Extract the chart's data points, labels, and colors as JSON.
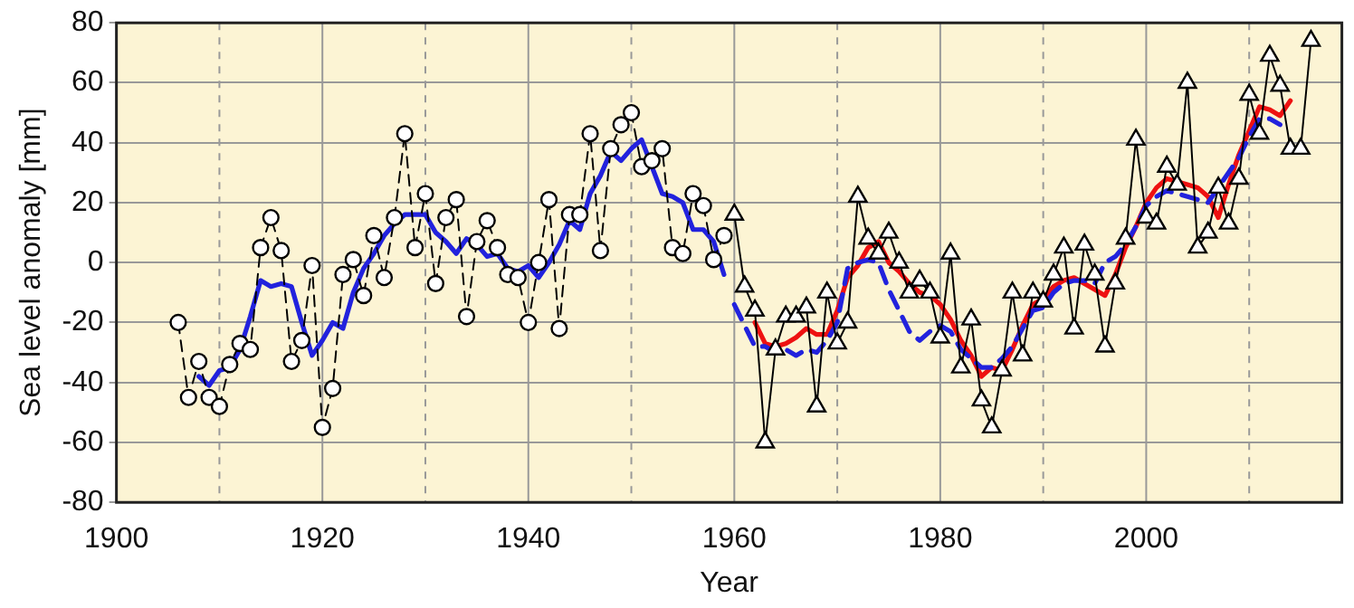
{
  "chart_data": {
    "type": "line",
    "xlabel": "Year",
    "ylabel": "Sea level anomaly [mm]",
    "xlim": [
      1900,
      2019
    ],
    "ylim": [
      -80,
      80
    ],
    "xticks": [
      1900,
      {
        "value": 1910,
        "label": null
      },
      1920,
      {
        "value": 1930,
        "label": null
      },
      1940,
      {
        "value": 1950,
        "label": null
      },
      1960,
      {
        "value": 1970,
        "label": null
      },
      1980,
      {
        "value": 1990,
        "label": null
      },
      2000,
      {
        "value": 2010,
        "label": null
      }
    ],
    "yticks": [
      -80,
      -60,
      -40,
      -20,
      0,
      20,
      40,
      60,
      80
    ],
    "grid": true,
    "legend": false,
    "series": [
      {
        "color": "#000000",
        "marker": "circle",
        "line_style": "dashed",
        "x": [
          1906,
          1907,
          1908,
          1909,
          1910,
          1911,
          1912,
          1913,
          1914,
          1915,
          1916,
          1917,
          1918,
          1919,
          1920,
          1921,
          1922,
          1923,
          1924,
          1925,
          1926,
          1927,
          1928,
          1929,
          1930,
          1931,
          1932,
          1933,
          1934,
          1935,
          1936,
          1937,
          1938,
          1939,
          1940,
          1941,
          1942,
          1943,
          1944,
          1945,
          1946,
          1947,
          1948,
          1949,
          1950,
          1951,
          1952,
          1953,
          1954,
          1955,
          1956,
          1957,
          1958,
          1959
        ],
        "values": [
          -20,
          -45,
          -33,
          -45,
          -48,
          -34,
          -27,
          -29,
          5,
          15,
          4,
          -33,
          -26,
          -1,
          -55,
          -42,
          -4,
          1,
          -11,
          9,
          -5,
          15,
          43,
          5,
          23,
          -7,
          15,
          21,
          -18,
          7,
          14,
          5,
          -4,
          -5,
          -20,
          0,
          21,
          -22,
          16,
          16,
          43,
          4,
          38,
          46,
          50,
          32,
          34,
          38,
          5,
          3,
          23,
          19,
          1,
          9
        ]
      },
      {
        "color": "#000000",
        "marker": "triangle",
        "line_style": "solid",
        "x": [
          1960,
          1961,
          1962,
          1963,
          1964,
          1965,
          1966,
          1967,
          1968,
          1969,
          1970,
          1971,
          1972,
          1973,
          1974,
          1975,
          1976,
          1977,
          1978,
          1979,
          1980,
          1981,
          1982,
          1983,
          1984,
          1985,
          1986,
          1987,
          1988,
          1989,
          1990,
          1991,
          1992,
          1993,
          1994,
          1995,
          1996,
          1997,
          1998,
          1999,
          2000,
          2001,
          2002,
          2003,
          2004,
          2005,
          2006,
          2007,
          2008,
          2009,
          2010,
          2011,
          2012,
          2013,
          2014,
          2015,
          2016
        ],
        "values": [
          16,
          -8,
          -16,
          -60,
          -29,
          -18,
          -18,
          -15,
          -48,
          -10,
          -27,
          -20,
          22,
          8,
          3,
          10,
          0,
          -10,
          -6,
          -10,
          -25,
          3,
          -35,
          -19,
          -46,
          -55,
          -36,
          -10,
          -31,
          -10,
          -13,
          -4,
          5,
          -22,
          6,
          -4,
          -28,
          -7,
          8,
          41,
          15,
          13,
          32,
          26,
          60,
          5,
          10,
          25,
          13,
          28,
          56,
          43,
          69,
          59,
          38,
          38,
          74
        ]
      },
      {
        "color": "#2222dd",
        "marker": "none",
        "line_style": "solid",
        "x": [
          1908,
          1909,
          1910,
          1911,
          1912,
          1913,
          1914,
          1915,
          1916,
          1917,
          1918,
          1919,
          1920,
          1921,
          1922,
          1923,
          1924,
          1925,
          1926,
          1927,
          1928,
          1929,
          1930,
          1931,
          1932,
          1933,
          1934,
          1935,
          1936,
          1937,
          1938,
          1939,
          1940,
          1941,
          1942,
          1943,
          1944,
          1945,
          1946,
          1947,
          1948,
          1949,
          1950,
          1951,
          1952,
          1953,
          1954,
          1955,
          1956,
          1957,
          1958,
          1959
        ],
        "values": [
          -38,
          -41,
          -36,
          -35,
          -29,
          -18,
          -6,
          -8,
          -7,
          -8,
          -20,
          -31,
          -26,
          -20,
          -22,
          -10,
          -2,
          3,
          9,
          13,
          16,
          16,
          16,
          10,
          7,
          3,
          8,
          6,
          2,
          3,
          -2,
          -3,
          -1,
          -5,
          0,
          6,
          14,
          11,
          23,
          29,
          37,
          34,
          38,
          41,
          32,
          23,
          22,
          20,
          11,
          11,
          7,
          -4
        ]
      },
      {
        "color": "#2222dd",
        "marker": "none",
        "line_style": "dashed",
        "x": [
          1960,
          1961,
          1962,
          1963,
          1964,
          1965,
          1966,
          1967,
          1968,
          1969,
          1970,
          1971,
          1972,
          1973,
          1974,
          1975,
          1976,
          1977,
          1978,
          1979,
          1980,
          1981,
          1982,
          1983,
          1984,
          1985,
          1986,
          1987,
          1988,
          1989,
          1990,
          1991,
          1992,
          1993,
          1994,
          1995,
          1996,
          1997,
          1998,
          1999,
          2000,
          2001,
          2002,
          2003,
          2004,
          2005,
          2006,
          2007,
          2008,
          2009,
          2010,
          2011,
          2012,
          2013
        ],
        "values": [
          -14,
          -21,
          -28,
          -28,
          -30,
          -29,
          -31,
          -29,
          -30,
          -26,
          -20,
          -2,
          0,
          1,
          0,
          -9,
          -16,
          -23,
          -26,
          -23,
          -21,
          -23,
          -29,
          -32,
          -35,
          -35,
          -32,
          -28,
          -22,
          -16,
          -15,
          -10,
          -7,
          -6,
          -6,
          -7,
          0,
          2,
          6,
          12,
          19,
          22,
          24,
          23,
          22,
          21,
          20,
          25,
          30,
          35,
          42,
          48,
          48,
          46
        ]
      },
      {
        "color": "#ee1111",
        "marker": "none",
        "line_style": "solid",
        "x": [
          1962,
          1963,
          1964,
          1965,
          1966,
          1967,
          1968,
          1969,
          1970,
          1971,
          1972,
          1973,
          1974,
          1975,
          1976,
          1977,
          1978,
          1979,
          1980,
          1981,
          1982,
          1983,
          1984,
          1985,
          1986,
          1987,
          1988,
          1989,
          1990,
          1991,
          1992,
          1993,
          1994,
          1995,
          1996,
          1997,
          1998,
          1999,
          2000,
          2001,
          2002,
          2003,
          2004,
          2005,
          2006,
          2007,
          2008,
          2009,
          2010,
          2011,
          2012,
          2013,
          2014
        ],
        "values": [
          -20,
          -27,
          -28,
          -27,
          -25,
          -22,
          -24,
          -24,
          -16,
          -5,
          -1,
          5,
          7,
          0,
          -3,
          -7,
          -10,
          -11,
          -14,
          -19,
          -26,
          -31,
          -38,
          -35,
          -36,
          -29,
          -21,
          -14,
          -12,
          -8,
          -6,
          -5,
          -7,
          -9,
          -11,
          -4,
          5,
          12,
          20,
          25,
          28,
          27,
          26,
          25,
          22,
          15,
          26,
          36,
          44,
          52,
          51,
          49,
          54
        ]
      }
    ]
  }
}
